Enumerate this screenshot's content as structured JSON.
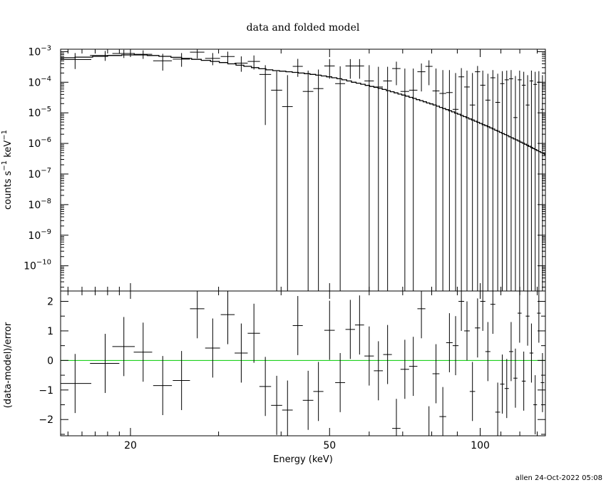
{
  "chart_data": [
    {
      "type": "scatter",
      "title": "data and folded model",
      "xlabel": "Energy (keV)",
      "ylabel": "counts s^-1 keV^-1",
      "yscale": "log",
      "xscale": "log",
      "xlim": [
        14.5,
        135
      ],
      "ylim": [
        1.5e-11,
        0.0012
      ],
      "x_ticks": [
        "20",
        "50",
        "100"
      ],
      "y_ticks": [
        {
          "base": "10",
          "exp": "-3"
        },
        {
          "base": "10",
          "exp": "-4"
        },
        {
          "base": "10",
          "exp": "-5"
        },
        {
          "base": "10",
          "exp": "-6"
        },
        {
          "base": "10",
          "exp": "-7"
        },
        {
          "base": "10",
          "exp": "-8"
        },
        {
          "base": "10",
          "exp": "-9"
        },
        {
          "base": "10",
          "exp": "-10"
        }
      ],
      "grid": false,
      "series": [
        {
          "kind": "data",
          "x": [
            15.5,
            17.8,
            19.4,
            21.2,
            23.2,
            25.3,
            27.2,
            29.2,
            31.3,
            33.3,
            35.3,
            37.2,
            39.2,
            41.2,
            43.2,
            45.3,
            47.5,
            50.0,
            52.5,
            55.0,
            57.4,
            60.0,
            62.6,
            65.3,
            68.0,
            70.7,
            73.5,
            76.3,
            79.0,
            81.6,
            84.2,
            86.8,
            89.3,
            91.7,
            94.1,
            96.5,
            98.8,
            101.2,
            103.6,
            106.0,
            108.4,
            110.7,
            113.0,
            115.3,
            117.6,
            119.9,
            122.2,
            124.4,
            126.6,
            128.8,
            131.0,
            133.2
          ],
          "xerr": [
            1.2,
            1.2,
            1.0,
            0.9,
            1.0,
            1.0,
            0.9,
            1.0,
            1.0,
            1.0,
            1.0,
            1.0,
            1.0,
            1.0,
            1.0,
            1.1,
            1.1,
            1.2,
            1.2,
            1.2,
            1.2,
            1.3,
            1.3,
            1.3,
            1.3,
            1.4,
            1.4,
            1.4,
            1.3,
            1.3,
            1.3,
            1.3,
            1.2,
            1.2,
            1.2,
            1.2,
            1.2,
            1.2,
            1.2,
            1.2,
            1.2,
            1.1,
            1.1,
            1.1,
            1.1,
            1.1,
            1.1,
            1.1,
            1.1,
            1.1,
            1.1,
            1.1
          ],
          "y": [
            0.00055,
            0.00075,
            0.00087,
            0.00082,
            0.0005,
            0.00057,
            0.00096,
            0.0006,
            0.00069,
            0.00042,
            0.00048,
            0.00018,
            5.5e-05,
            1.6e-05,
            0.00033,
            5e-05,
            6.2e-05,
            0.00034,
            9e-05,
            0.00034,
            0.00034,
            0.00011,
            7e-05,
            0.00011,
            0.00028,
            5e-05,
            5.5e-05,
            0.00022,
            0.00033,
            5.2e-05,
            4.3e-05,
            4.6e-05,
            1.3e-05,
            0.00015,
            7e-05,
            1.8e-05,
            0.00022,
            8e-05,
            2.6e-05,
            0.00014,
            2.2e-05,
            9e-05,
            0.00012,
            0.00013,
            7e-06,
            0.00012,
            8e-05,
            1.8e-05,
            0.00011,
            8.5e-05,
            0.0001,
            1.3e-05
          ],
          "ylo": [
            0.00027,
            0.0005,
            0.00062,
            0.00058,
            0.00024,
            0.00032,
            0.0006,
            0.00036,
            0.00045,
            0.00022,
            0.00026,
            4e-06,
            1.5e-11,
            1.5e-11,
            0.00015,
            1.5e-11,
            1.5e-11,
            0.00013,
            1.5e-11,
            0.00013,
            0.00013,
            1.5e-11,
            1.5e-11,
            1.5e-11,
            8e-05,
            1.5e-11,
            1.5e-11,
            5e-05,
            8e-05,
            1.5e-11,
            1.5e-11,
            1.5e-11,
            1.5e-11,
            1.5e-11,
            1.5e-11,
            1.5e-11,
            1.5e-11,
            1.5e-11,
            1.5e-11,
            1.5e-11,
            1.5e-11,
            1.5e-11,
            1.5e-11,
            1.5e-11,
            1.5e-11,
            1.5e-11,
            1.5e-11,
            1.5e-11,
            1.5e-11,
            1.5e-11,
            1.5e-11,
            1.5e-11
          ],
          "yhi": [
            0.0009,
            0.00105,
            0.00115,
            0.0011,
            0.00085,
            0.0009,
            0.00135,
            0.0009,
            0.001,
            0.0007,
            0.00075,
            0.00036,
            0.00023,
            0.00017,
            0.00058,
            0.00024,
            0.00026,
            0.00057,
            0.00033,
            0.00057,
            0.00057,
            0.00036,
            0.00032,
            0.00032,
            0.00047,
            0.00028,
            0.00028,
            0.00041,
            0.00052,
            0.00028,
            0.00025,
            0.00025,
            0.0002,
            0.00029,
            0.00024,
            0.0002,
            0.00034,
            0.00024,
            0.00019,
            0.00025,
            0.00019,
            0.00023,
            0.00024,
            0.00025,
            0.00016,
            0.00024,
            0.00022,
            0.00017,
            0.00024,
            0.00022,
            0.00023,
            0.00017
          ]
        },
        {
          "kind": "model",
          "x": [
            14.3,
            15.5,
            16.8,
            18.0,
            19.2,
            20.4,
            21.6,
            22.8,
            24.1,
            25.3,
            26.5,
            27.7,
            28.9,
            30.1,
            31.3,
            32.5,
            33.7,
            34.9,
            36.1,
            37.3,
            38.5,
            39.7,
            40.9,
            42.1,
            43.3,
            44.5,
            45.7,
            46.9,
            48.1,
            49.3,
            50.5,
            51.7,
            52.9,
            54.1,
            55.3,
            56.5,
            57.7,
            58.9,
            60.1,
            61.3,
            62.5,
            63.7,
            64.9,
            66.1,
            67.3,
            68.5,
            69.7,
            70.9,
            72.1,
            73.3,
            74.5,
            75.7,
            76.9,
            78.1,
            79.3,
            80.5,
            81.7,
            82.9,
            84.1,
            85.3,
            86.5,
            87.7,
            88.9,
            90.1,
            91.3,
            92.5,
            93.7,
            94.9,
            96.1,
            97.3,
            98.5,
            99.7,
            100.9,
            102.1,
            103.3,
            104.5,
            105.7,
            106.9,
            108.1,
            109.3,
            110.5,
            111.7,
            112.9,
            114.1,
            115.3,
            116.5,
            117.7,
            118.9,
            120.1,
            121.3,
            122.5,
            123.7,
            124.9,
            126.1,
            127.3,
            128.5,
            129.7,
            130.9,
            132.1,
            133.3,
            134.5,
            135.0
          ],
          "y": [
            0.00063,
            0.00066,
            0.0007,
            0.00075,
            0.00078,
            0.00078,
            0.00075,
            0.0007,
            0.00065,
            0.0006,
            0.00056,
            0.00052,
            0.00048,
            0.00044,
            0.0004,
            0.00036,
            0.00033,
            0.0003,
            0.000275,
            0.000255,
            0.00024,
            0.00023,
            0.00022,
            0.00021,
            0.0002,
            0.00019,
            0.00018,
            0.00017,
            0.00016,
            0.00015,
            0.00014,
            0.00013,
            0.00012,
            0.00011,
            0.0001,
            9.3e-05,
            8.6e-05,
            7.9e-05,
            7.3e-05,
            6.8e-05,
            6.3e-05,
            5.8e-05,
            5.3e-05,
            4.9e-05,
            4.5e-05,
            4.1e-05,
            3.8e-05,
            3.5e-05,
            3.2e-05,
            2.95e-05,
            2.7e-05,
            2.5e-05,
            2.3e-05,
            2.1e-05,
            1.95e-05,
            1.8e-05,
            1.65e-05,
            1.5e-05,
            1.38e-05,
            1.27e-05,
            1.17e-05,
            1.07e-05,
            9.8e-06,
            9e-06,
            8.2e-06,
            7.5e-06,
            6.9e-06,
            6.3e-06,
            5.8e-06,
            5.3e-06,
            4.9e-06,
            4.5e-06,
            4.1e-06,
            3.8e-06,
            3.5e-06,
            3.2e-06,
            2.95e-06,
            2.7e-06,
            2.5e-06,
            2.3e-06,
            2.1e-06,
            1.95e-06,
            1.8e-06,
            1.65e-06,
            1.52e-06,
            1.4e-06,
            1.3e-06,
            1.2e-06,
            1.1e-06,
            1.02e-06,
            9.4e-07,
            8.7e-07,
            8e-07,
            7.4e-07,
            6.8e-07,
            6.3e-07,
            5.8e-07,
            5.4e-07,
            5e-07,
            4.6e-07,
            4.3e-07,
            4.2e-07
          ]
        }
      ]
    },
    {
      "type": "scatter",
      "xlabel": "Energy (keV)",
      "ylabel": "(data-model)/error",
      "xscale": "log",
      "xlim": [
        14.5,
        135
      ],
      "ylim": [
        -2.55,
        2.35
      ],
      "y_ticks": [
        "2",
        "1",
        "0",
        "−1",
        "−2"
      ],
      "x_ticks": [
        "20",
        "50",
        "100"
      ],
      "reference_line": {
        "y": 0,
        "color": "#00cc00"
      },
      "series": [
        {
          "kind": "residuals",
          "x": [
            15.5,
            17.8,
            19.4,
            21.2,
            23.2,
            25.3,
            27.2,
            29.2,
            31.3,
            33.3,
            35.3,
            37.2,
            39.2,
            41.2,
            43.2,
            45.3,
            47.5,
            50.0,
            52.5,
            55.0,
            57.4,
            60.0,
            62.6,
            65.3,
            68.0,
            70.7,
            73.5,
            76.3,
            79.0,
            81.6,
            84.2,
            86.8,
            89.3,
            91.7,
            94.1,
            96.5,
            98.8,
            101.2,
            103.6,
            106.0,
            108.4,
            110.7,
            113.0,
            115.3,
            117.6,
            119.9,
            122.2,
            124.4,
            126.6,
            128.8,
            131.0,
            133.2
          ],
          "xerr": [
            1.2,
            1.2,
            1.0,
            0.9,
            1.0,
            1.0,
            0.9,
            1.0,
            1.0,
            1.0,
            1.0,
            1.0,
            1.0,
            1.0,
            1.0,
            1.1,
            1.1,
            1.2,
            1.2,
            1.2,
            1.2,
            1.3,
            1.3,
            1.3,
            1.3,
            1.4,
            1.4,
            1.4,
            1.3,
            1.3,
            1.3,
            1.3,
            1.2,
            1.2,
            1.2,
            1.2,
            1.2,
            1.2,
            1.2,
            1.2,
            1.2,
            1.1,
            1.1,
            1.1,
            1.1,
            1.1,
            1.1,
            1.1,
            1.1,
            1.1,
            1.1,
            1.1
          ],
          "y": [
            -0.78,
            -0.1,
            0.47,
            0.28,
            -0.85,
            -0.68,
            1.75,
            0.42,
            1.55,
            0.25,
            0.92,
            -0.88,
            -1.52,
            -1.68,
            1.18,
            -1.35,
            -1.05,
            1.02,
            -0.75,
            1.05,
            1.2,
            0.15,
            -0.35,
            0.2,
            -2.3,
            -0.3,
            -0.2,
            1.75,
            -2.55,
            -0.45,
            -1.9,
            0.6,
            0.5,
            2.0,
            1.0,
            -1.05,
            1.1,
            2.0,
            0.3,
            1.9,
            -1.75,
            -0.8,
            -0.95,
            0.3,
            -0.6,
            1.6,
            -0.7,
            1.5,
            0.25,
            -1.5,
            1.6,
            -0.75
          ],
          "yerr": [
            1.0,
            1.0,
            1.0,
            1.0,
            1.0,
            1.0,
            1.0,
            1.0,
            1.0,
            1.0,
            1.0,
            1.0,
            1.0,
            1.0,
            1.0,
            1.0,
            1.0,
            1.0,
            1.0,
            1.0,
            1.0,
            1.0,
            1.0,
            1.0,
            1.0,
            1.0,
            1.0,
            1.0,
            1.0,
            1.0,
            1.0,
            1.0,
            1.0,
            1.0,
            1.0,
            1.0,
            1.0,
            1.0,
            1.0,
            1.0,
            1.0,
            1.0,
            1.0,
            1.0,
            1.0,
            1.0,
            1.0,
            1.0,
            1.0,
            1.0,
            1.0,
            1.0
          ]
        }
      ]
    }
  ],
  "footer": "allen 24-Oct-2022 05:08"
}
